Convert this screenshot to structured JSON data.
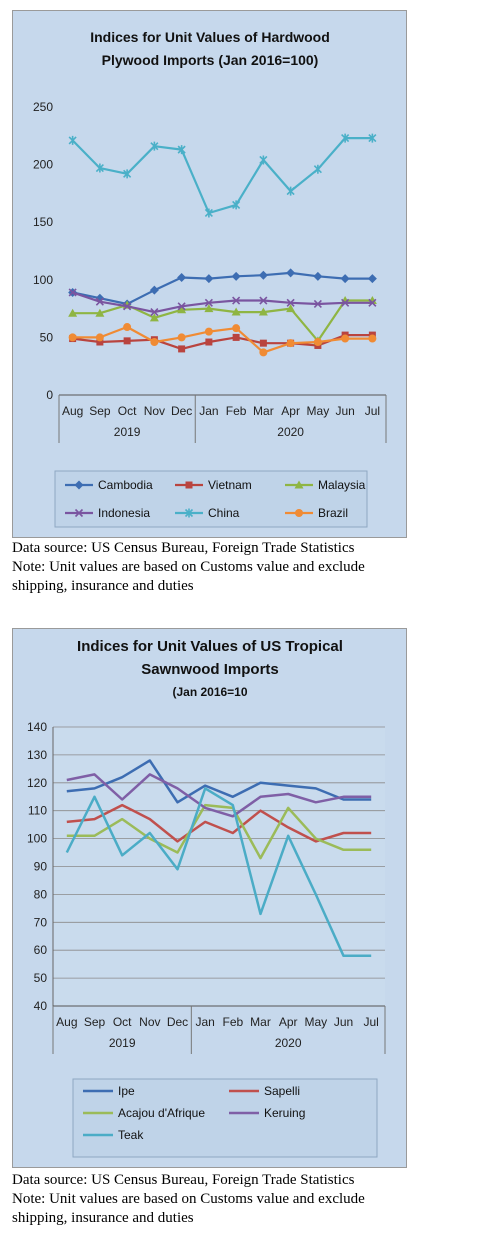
{
  "chart_data": [
    {
      "type": "line",
      "title": [
        "Indices for Unit Values of Hardwood",
        "Plywood Imports (Jan 2016=100)"
      ],
      "categories": [
        "Aug",
        "Sep",
        "Oct",
        "Nov",
        "Dec",
        "Jan",
        "Feb",
        "Mar",
        "Apr",
        "May",
        "Jun",
        "Jul"
      ],
      "groups": [
        {
          "label": "2019",
          "start": 0,
          "end": 4
        },
        {
          "label": "2020",
          "start": 5,
          "end": 11
        }
      ],
      "ylim": [
        0,
        250
      ],
      "yticks": [
        0,
        50,
        100,
        150,
        200,
        250
      ],
      "grid": false,
      "legend_position": "bottom",
      "series": [
        {
          "name": "Cambodia",
          "color": "#3d6db2",
          "marker": "diamond",
          "values": [
            89,
            84,
            79,
            91,
            102,
            101,
            103,
            104,
            106,
            103,
            101,
            101
          ]
        },
        {
          "name": "Vietnam",
          "color": "#b9443f",
          "marker": "square",
          "values": [
            49,
            46,
            47,
            48,
            40,
            46,
            50,
            45,
            45,
            43,
            52,
            52
          ]
        },
        {
          "name": "Malaysia",
          "color": "#8fb543",
          "marker": "triangle",
          "values": [
            71,
            71,
            78,
            67,
            74,
            75,
            72,
            72,
            75,
            47,
            82,
            82
          ]
        },
        {
          "name": "Indonesia",
          "color": "#7a55a0",
          "marker": "x",
          "values": [
            89,
            81,
            77,
            72,
            77,
            80,
            82,
            82,
            80,
            79,
            80,
            80
          ]
        },
        {
          "name": "China",
          "color": "#4ab0c8",
          "marker": "star",
          "values": [
            221,
            197,
            192,
            216,
            213,
            158,
            165,
            204,
            177,
            196,
            223,
            223
          ]
        },
        {
          "name": "Brazil",
          "color": "#f08b34",
          "marker": "circle",
          "values": [
            50,
            50,
            59,
            46,
            50,
            55,
            58,
            37,
            45,
            46,
            49,
            49
          ]
        }
      ]
    },
    {
      "type": "line",
      "title": [
        "Indices for Unit Values of US Tropical",
        "Sawnwood Imports"
      ],
      "subtitle": "(Jan 2016=10",
      "categories": [
        "Aug",
        "Sep",
        "Oct",
        "Nov",
        "Dec",
        "Jan",
        "Feb",
        "Mar",
        "Apr",
        "May",
        "Jun",
        "Jul"
      ],
      "groups": [
        {
          "label": "2019",
          "start": 0,
          "end": 4
        },
        {
          "label": "2020",
          "start": 5,
          "end": 11
        }
      ],
      "ylim": [
        40,
        140
      ],
      "yticks": [
        40,
        50,
        60,
        70,
        80,
        90,
        100,
        110,
        120,
        130,
        140
      ],
      "grid": true,
      "legend_position": "bottom",
      "series": [
        {
          "name": "Ipe",
          "color": "#3d6db2",
          "values": [
            117,
            118,
            122,
            128,
            113,
            119,
            115,
            120,
            119,
            118,
            114,
            114
          ]
        },
        {
          "name": "Sapelli",
          "color": "#c0504d",
          "values": [
            106,
            107,
            112,
            107,
            99,
            106,
            102,
            110,
            104,
            99,
            102,
            102
          ]
        },
        {
          "name": "Acajou d'Afrique",
          "color": "#9bbb59",
          "values": [
            101,
            101,
            107,
            100,
            95,
            112,
            111,
            93,
            111,
            100,
            96,
            96
          ]
        },
        {
          "name": "Keruing",
          "color": "#7f5fa6",
          "values": [
            121,
            123,
            114,
            123,
            118,
            111,
            108,
            115,
            116,
            113,
            115,
            115
          ]
        },
        {
          "name": "Teak",
          "color": "#4bacc6",
          "values": [
            95,
            115,
            94,
            102,
            89,
            118,
            112,
            73,
            101,
            80,
            58,
            58
          ]
        }
      ]
    }
  ],
  "notes": [
    {
      "source": "Data source: US Census Bureau, Foreign Trade Statistics",
      "note_line1": "Note: Unit values are based on Customs value and exclude",
      "note_line2": "shipping, insurance and duties"
    },
    {
      "source": "Data source: US Census Bureau, Foreign Trade Statistics",
      "note_line1": "Note: Unit values are based on Customs value and exclude",
      "note_line2": "shipping, insurance and duties"
    }
  ]
}
